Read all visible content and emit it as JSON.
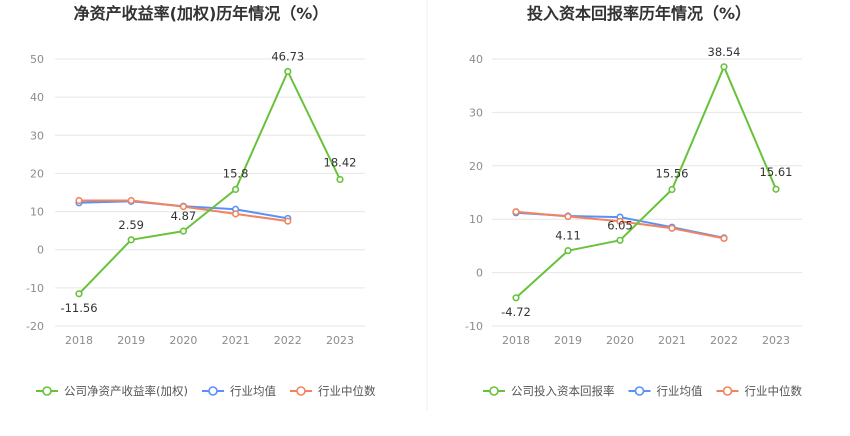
{
  "chart_data": [
    {
      "type": "line",
      "title": "净资产收益率(加权)历年情况（%）",
      "categories": [
        "2018",
        "2019",
        "2020",
        "2021",
        "2022",
        "2023"
      ],
      "ylim": [
        -20,
        50
      ],
      "yticks": [
        "-20",
        "-10",
        "0",
        "10",
        "20",
        "30",
        "40",
        "50"
      ],
      "grid": true,
      "legend_position": "bottom",
      "series": [
        {
          "name": "公司净资产收益率(加权)",
          "color": "#67c23a",
          "values": [
            -11.56,
            2.59,
            4.87,
            15.8,
            46.73,
            18.42
          ],
          "labels": [
            "-11.56",
            "2.59",
            "4.87",
            "15.8",
            "46.73",
            "18.42"
          ]
        },
        {
          "name": "行业均值",
          "color": "#5b8ff9",
          "values": [
            12.3,
            12.7,
            11.4,
            10.6,
            8.2,
            null
          ]
        },
        {
          "name": "行业中位数",
          "color": "#f0845e",
          "values": [
            12.9,
            12.9,
            11.3,
            9.4,
            7.5,
            null
          ]
        }
      ]
    },
    {
      "type": "line",
      "title": "投入资本回报率历年情况（%）",
      "categories": [
        "2018",
        "2019",
        "2020",
        "2021",
        "2022",
        "2023"
      ],
      "ylim": [
        -10,
        40
      ],
      "yticks": [
        "-10",
        "0",
        "10",
        "20",
        "30",
        "40"
      ],
      "grid": true,
      "legend_position": "bottom",
      "series": [
        {
          "name": "公司投入资本回报率",
          "color": "#67c23a",
          "values": [
            -4.72,
            4.11,
            6.05,
            15.56,
            38.54,
            15.61
          ],
          "labels": [
            "-4.72",
            "4.11",
            "6.05",
            "15.56",
            "38.54",
            "15.61"
          ]
        },
        {
          "name": "行业均值",
          "color": "#5b8ff9",
          "values": [
            11.2,
            10.6,
            10.4,
            8.5,
            6.5,
            null
          ]
        },
        {
          "name": "行业中位数",
          "color": "#f0845e",
          "values": [
            11.4,
            10.5,
            9.6,
            8.3,
            6.4,
            null
          ]
        }
      ]
    }
  ]
}
